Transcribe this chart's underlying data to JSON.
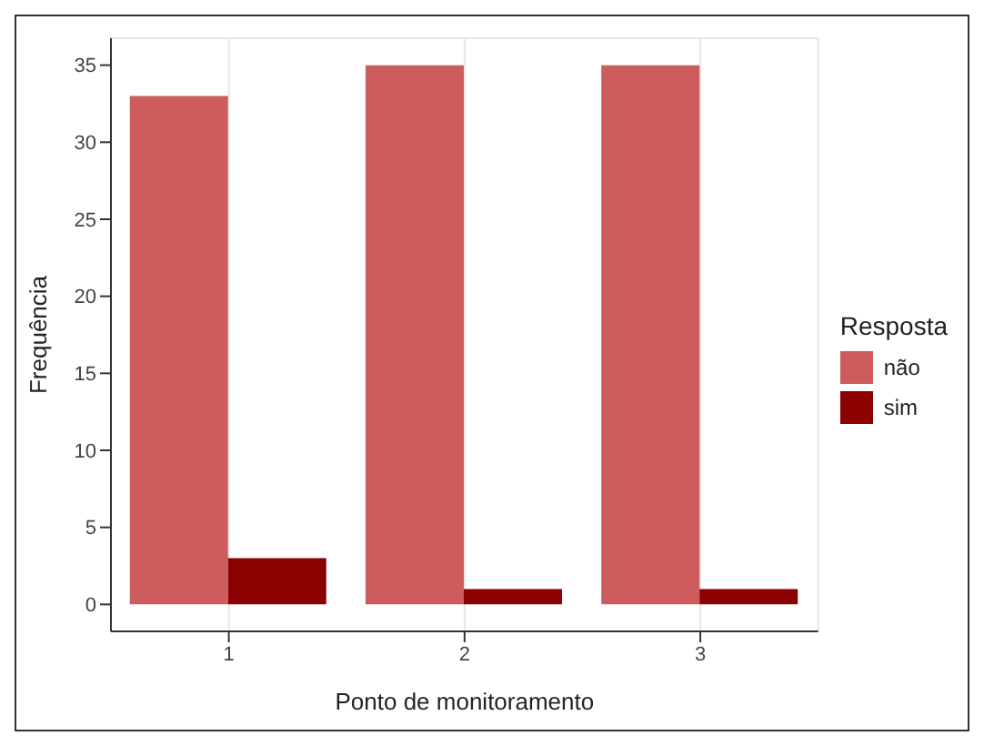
{
  "chart_data": {
    "type": "bar",
    "xlabel": "Ponto de monitoramento",
    "ylabel": "Frequência",
    "legend_title": "Resposta",
    "categories": [
      "1",
      "2",
      "3"
    ],
    "series": [
      {
        "name": "não",
        "color": "#cd5c5c",
        "values": [
          33,
          35,
          35
        ]
      },
      {
        "name": "sim",
        "color": "#8b0000",
        "values": [
          3,
          1,
          1
        ]
      }
    ],
    "ylim": [
      -1.75,
      36.75
    ],
    "yticks": [
      0,
      5,
      10,
      15,
      20,
      25,
      30,
      35
    ],
    "grid": true,
    "legend": "right"
  }
}
